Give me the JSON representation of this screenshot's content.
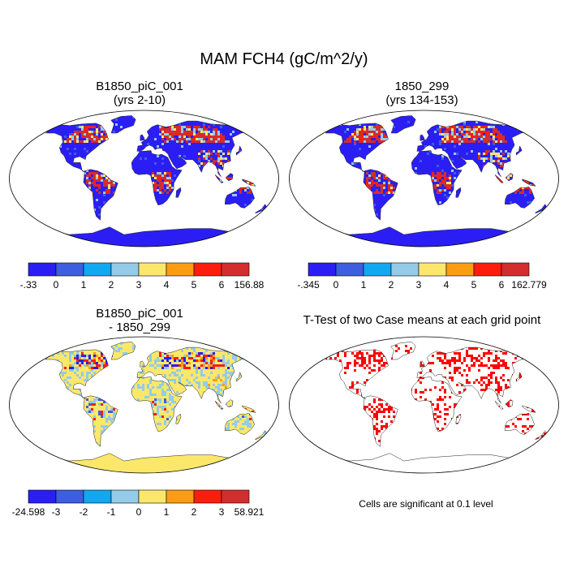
{
  "title": "MAM FCH4 (gC/m^2/y)",
  "panels": [
    {
      "id": "case1",
      "title_line1": "B1850_piC_001",
      "title_line2": "(yrs 2-10)",
      "type": "field-map",
      "colorbar": {
        "labels": [
          "-.33",
          "0",
          "1",
          "2",
          "3",
          "4",
          "5",
          "6",
          "156.88"
        ],
        "colors": [
          "#2b1ef5",
          "#3d5ee0",
          "#10a8f0",
          "#94cbe8",
          "#fbe86b",
          "#fb9d12",
          "#fb1e0c",
          "#d32d2d"
        ]
      }
    },
    {
      "id": "case2",
      "title_line1": "1850_299",
      "title_line2": "(yrs 134-153)",
      "type": "field-map",
      "colorbar": {
        "labels": [
          "-.345",
          "0",
          "1",
          "2",
          "3",
          "4",
          "5",
          "6",
          "162.779"
        ],
        "colors": [
          "#2b1ef5",
          "#3d5ee0",
          "#10a8f0",
          "#94cbe8",
          "#fbe86b",
          "#fb9d12",
          "#fb1e0c",
          "#d32d2d"
        ]
      }
    },
    {
      "id": "diff",
      "title_line1": "B1850_piC_001",
      "title_line2": "- 1850_299",
      "type": "difference-map",
      "colorbar": {
        "labels": [
          "-24.598",
          "-3",
          "-2",
          "-1",
          "0",
          "1",
          "2",
          "3",
          "58.921"
        ],
        "colors": [
          "#2b1ef5",
          "#3d5ee0",
          "#10a8f0",
          "#94cbe8",
          "#fbe86b",
          "#fb9d12",
          "#fb1e0c",
          "#d32d2d"
        ]
      }
    },
    {
      "id": "ttest",
      "title_line1": "T-Test of two Case means at each grid point",
      "title_line2": "",
      "type": "significance-map",
      "note": "Cells are significant at 0.1 level",
      "significant_color": "#ff0000"
    }
  ]
}
